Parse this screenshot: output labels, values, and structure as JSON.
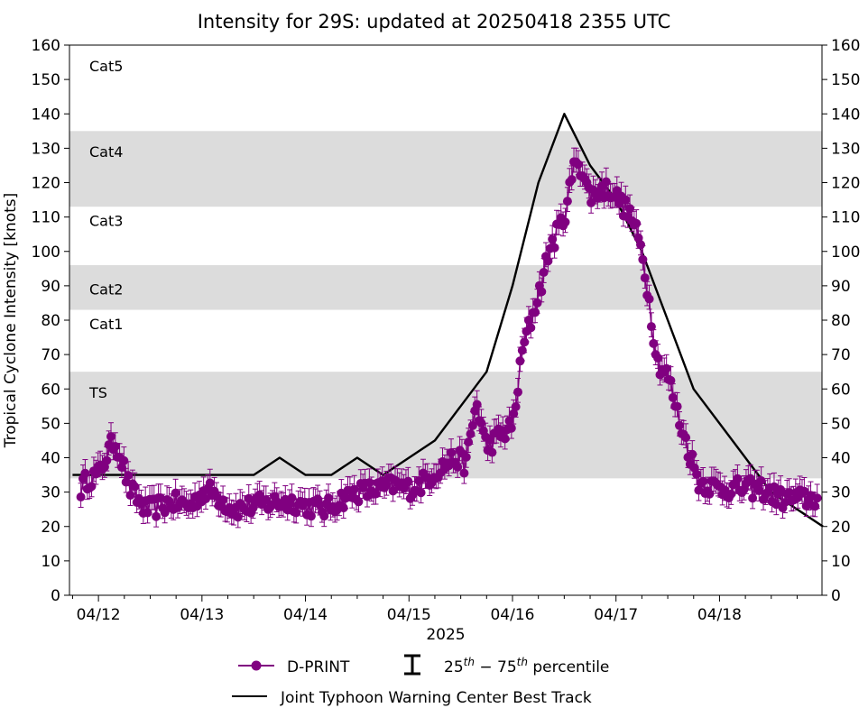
{
  "chart_data": {
    "type": "line",
    "title": "Intensity for 29S: updated at 20250418 2355 UTC",
    "ylabel": "Tropical Cyclone Intensity [knots]",
    "xlabel": "2025",
    "ylim": [
      0,
      160
    ],
    "xlim_days": [
      11.72,
      18.99
    ],
    "yticks": [
      "0",
      "10",
      "20",
      "30",
      "40",
      "50",
      "60",
      "70",
      "80",
      "90",
      "100",
      "110",
      "120",
      "130",
      "140",
      "150",
      "160"
    ],
    "xticks": [
      {
        "day": 12,
        "label": "04/12"
      },
      {
        "day": 13,
        "label": "04/13"
      },
      {
        "day": 14,
        "label": "04/14"
      },
      {
        "day": 15,
        "label": "04/15"
      },
      {
        "day": 16,
        "label": "04/16"
      },
      {
        "day": 17,
        "label": "04/17"
      },
      {
        "day": 18,
        "label": "04/18"
      }
    ],
    "bands": [
      {
        "label": "Cat5",
        "y0": 137,
        "y1": 160,
        "shaded": false,
        "label_y": 154
      },
      {
        "label": "Cat4",
        "y0": 113,
        "y1": 135,
        "shaded": true,
        "label_y": 129
      },
      {
        "label": "Cat3",
        "y0": 96,
        "y1": 113,
        "shaded": false,
        "label_y": 109
      },
      {
        "label": "Cat2",
        "y0": 83,
        "y1": 96,
        "shaded": true,
        "label_y": 89
      },
      {
        "label": "Cat1",
        "y0": 64,
        "y1": 83,
        "shaded": false,
        "label_y": 79
      },
      {
        "label": "TS",
        "y0": 34,
        "y1": 65,
        "shaded": true,
        "label_y": 59
      }
    ],
    "series": [
      {
        "name": "Joint Typhoon Warning Center Best Track",
        "color": "#000000",
        "x": [
          11.75,
          12.0,
          12.25,
          12.5,
          12.75,
          13.0,
          13.25,
          13.5,
          13.75,
          14.0,
          14.25,
          14.5,
          14.75,
          15.0,
          15.25,
          15.5,
          15.75,
          16.0,
          16.25,
          16.5,
          16.75,
          17.0,
          17.25,
          17.5,
          17.75,
          18.0,
          18.25,
          18.5,
          18.75,
          19.0
        ],
        "values": [
          35,
          35,
          35,
          35,
          35,
          35,
          35,
          35,
          40,
          35,
          35,
          40,
          35,
          40,
          45,
          55,
          65,
          90,
          120,
          140,
          125,
          115,
          100,
          80,
          60,
          50,
          40,
          30,
          25,
          20
        ]
      },
      {
        "name": "D-PRINT",
        "color": "#800080",
        "generated": {
          "start_day": 11.83,
          "end_day": 18.96,
          "step_days": 0.0208,
          "anchor_x": [
            11.83,
            11.9,
            12.0,
            12.1,
            12.15,
            12.2,
            12.3,
            12.45,
            12.5,
            12.7,
            12.9,
            13.0,
            13.1,
            13.3,
            13.5,
            13.7,
            13.9,
            14.0,
            14.2,
            14.35,
            14.5,
            14.75,
            14.85,
            15.0,
            15.1,
            15.3,
            15.45,
            15.55,
            15.65,
            15.75,
            15.9,
            16.0,
            16.05,
            16.1,
            16.2,
            16.3,
            16.35,
            16.5,
            16.62,
            16.75,
            16.85,
            16.95,
            17.0,
            17.1,
            17.15,
            17.25,
            17.3,
            17.4,
            17.5,
            17.6,
            17.65,
            17.8,
            18.0,
            18.2,
            18.4,
            18.6,
            18.8,
            18.96
          ],
          "anchor_y": [
            31,
            34,
            35,
            42,
            45,
            42,
            31,
            25,
            25,
            27,
            26,
            30,
            30,
            25,
            26,
            27,
            27,
            26,
            25,
            28,
            30,
            31,
            32,
            31,
            32,
            37,
            40,
            38,
            56,
            43,
            47,
            49,
            60,
            72,
            82,
            93,
            100,
            110,
            128,
            116,
            118,
            118,
            116,
            112,
            110,
            100,
            90,
            68,
            64,
            52,
            47,
            33,
            31,
            31,
            31,
            28,
            28,
            28
          ],
          "err_low": 3,
          "err_high": 4,
          "noise_amp": 3
        }
      }
    ],
    "legend": {
      "dprint_label": "D-PRINT",
      "percentile_label": "25",
      "percentile_th1": "th",
      "percentile_sep": " − 75",
      "percentile_th2": "th",
      "percentile_suffix": " percentile",
      "best_track_label": "Joint Typhoon Warning Center Best Track",
      "position": "bottom-center"
    },
    "colors": {
      "dprint": "#800080",
      "best_track": "#000000",
      "band_fill": "#dcdcdc"
    }
  }
}
